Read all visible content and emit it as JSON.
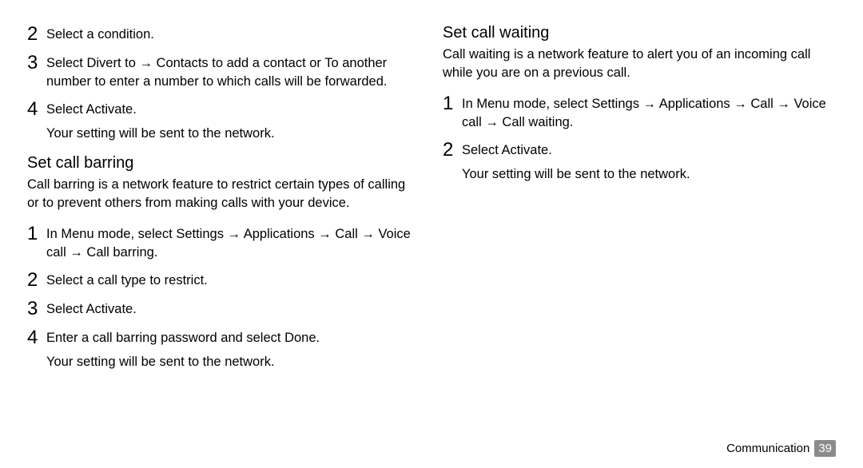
{
  "left": {
    "preSteps": [
      {
        "num": "2",
        "text": "Select a condition."
      },
      {
        "num": "3",
        "text": "Select Divert to → Contacts to add a contact or To another number to enter a number to which calls will be forwarded."
      },
      {
        "num": "4",
        "text": "Select Activate.",
        "note": "Your setting will be sent to the network."
      }
    ],
    "barring": {
      "heading": "Set call barring",
      "intro": "Call barring is a network feature to restrict certain types of calling or to prevent others from making calls with your device.",
      "steps": [
        {
          "num": "1",
          "text": "In Menu mode, select Settings → Applications → Call → Voice call → Call barring."
        },
        {
          "num": "2",
          "text": "Select a call type to restrict."
        },
        {
          "num": "3",
          "text": "Select Activate."
        },
        {
          "num": "4",
          "text": "Enter a call barring password and select Done.",
          "note": "Your setting will be sent to the network."
        }
      ]
    }
  },
  "right": {
    "waiting": {
      "heading": "Set call waiting",
      "intro": "Call waiting is a network feature to alert you of an incoming call while you are on a previous call.",
      "steps": [
        {
          "num": "1",
          "text": "In Menu mode, select Settings → Applications → Call → Voice call → Call waiting."
        },
        {
          "num": "2",
          "text": "Select Activate.",
          "note": "Your setting will be sent to the network."
        }
      ]
    }
  },
  "footer": {
    "section": "Communication",
    "page": "39"
  }
}
